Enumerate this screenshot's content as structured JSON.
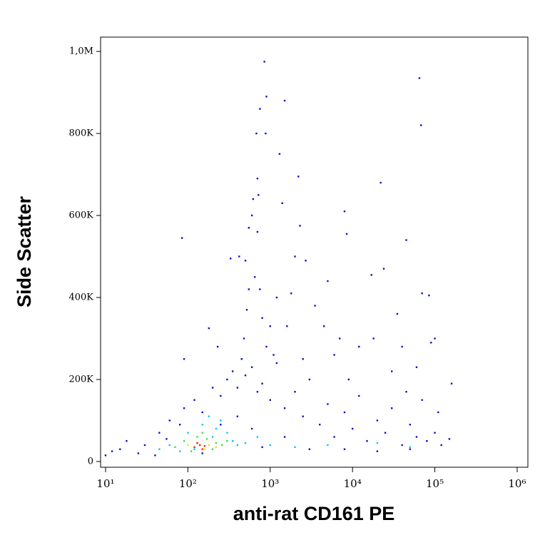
{
  "chart_data": {
    "type": "scatter",
    "x_label": "anti-rat CD161 PE",
    "y_label": "Side Scatter",
    "xscale": "log",
    "xlim": [
      8.7,
      1350000
    ],
    "ylim": [
      -14000,
      1035000
    ],
    "xticks": [
      {
        "value": 10,
        "label": "10¹"
      },
      {
        "value": 100,
        "label": "10²"
      },
      {
        "value": 1000,
        "label": "10³"
      },
      {
        "value": 10000,
        "label": "10⁴"
      },
      {
        "value": 100000,
        "label": "10⁵"
      },
      {
        "value": 1000000,
        "label": "10⁶"
      }
    ],
    "yticks": [
      0,
      {
        "value": 200000,
        "label": "200K"
      },
      {
        "value": 400000,
        "label": "400K"
      },
      {
        "value": 600000,
        "label": "600K"
      },
      {
        "value": 800000,
        "label": "800K"
      },
      {
        "value": 1000000,
        "label": "1,0M"
      }
    ],
    "series": [
      {
        "color": "#0a14c8",
        "x": [
          30,
          45,
          60,
          80,
          25,
          15,
          18,
          12,
          40,
          55,
          90,
          120,
          150,
          200,
          250,
          300,
          350,
          400,
          450,
          500,
          600,
          700,
          800,
          900,
          1000,
          1200,
          1500,
          2000,
          2500,
          3000,
          4000,
          5000,
          6000,
          8000,
          10000,
          12000,
          15000,
          20000,
          25000,
          30000,
          40000,
          50000,
          60000,
          80000,
          100000,
          120000,
          150000,
          160000,
          100000,
          70000,
          85000,
          65000,
          68000,
          45000,
          22000,
          8000,
          8500,
          17000,
          24000,
          5000,
          2200,
          2300,
          1400,
          1300,
          1500,
          900,
          850,
          750,
          880,
          680,
          700,
          720,
          600,
          550,
          500,
          420,
          330,
          650,
          750,
          800,
          1000,
          1200,
          1800,
          2000,
          2700,
          3500,
          4500,
          6000,
          7000,
          12000,
          18000,
          35000,
          40000,
          60000,
          90000,
          85,
          90,
          180,
          230,
          700,
          620,
          550,
          520,
          480,
          1100,
          1600,
          2500,
          9000,
          30000,
          45000,
          70000,
          110000,
          50000,
          3000,
          20000,
          800,
          150,
          10,
          8000,
          1500,
          400,
          250,
          600
        ],
        "values": [
          40000,
          70000,
          100000,
          90000,
          20000,
          30000,
          50000,
          25000,
          15000,
          55000,
          130000,
          150000,
          120000,
          180000,
          160000,
          200000,
          220000,
          180000,
          250000,
          210000,
          230000,
          170000,
          190000,
          280000,
          150000,
          240000,
          130000,
          170000,
          110000,
          200000,
          90000,
          140000,
          60000,
          120000,
          80000,
          160000,
          50000,
          100000,
          70000,
          130000,
          40000,
          90000,
          60000,
          50000,
          70000,
          40000,
          55000,
          190000,
          300000,
          410000,
          405000,
          935000,
          820000,
          540000,
          680000,
          610000,
          555000,
          455000,
          470000,
          440000,
          695000,
          575000,
          630000,
          750000,
          880000,
          890000,
          975000,
          860000,
          800000,
          800000,
          690000,
          650000,
          600000,
          570000,
          490000,
          500000,
          495000,
          450000,
          420000,
          350000,
          330000,
          400000,
          410000,
          500000,
          490000,
          380000,
          330000,
          260000,
          300000,
          280000,
          300000,
          360000,
          280000,
          230000,
          290000,
          545000,
          250000,
          325000,
          280000,
          560000,
          640000,
          420000,
          370000,
          300000,
          260000,
          330000,
          250000,
          200000,
          220000,
          170000,
          150000,
          120000,
          30000,
          30000,
          25000,
          35000,
          20000,
          15000,
          30000,
          60000,
          110000,
          90000,
          80000
        ]
      },
      {
        "color": "#00c8ff",
        "x": [
          60,
          100,
          150,
          200,
          250,
          300,
          350,
          400,
          120,
          80,
          500,
          1000,
          2000,
          5000,
          20000,
          50000,
          180,
          220,
          45,
          700
        ],
        "values": [
          40000,
          70000,
          90000,
          60000,
          100000,
          70000,
          50000,
          40000,
          30000,
          25000,
          45000,
          40000,
          35000,
          40000,
          45000,
          35000,
          110000,
          80000,
          30000,
          60000
        ]
      },
      {
        "color": "#40e040",
        "x": [
          70,
          90,
          130,
          170,
          220,
          260,
          110,
          150,
          300,
          200
        ],
        "values": [
          35000,
          50000,
          60000,
          55000,
          45000,
          40000,
          25000,
          70000,
          50000,
          30000
        ]
      },
      {
        "color": "#f0e000",
        "x": [
          100,
          130,
          180,
          160,
          120,
          220
        ],
        "values": [
          40000,
          45000,
          40000,
          30000,
          35000,
          35000
        ]
      },
      {
        "color": "#ff2000",
        "x": [
          120,
          140,
          160,
          150,
          130
        ],
        "values": [
          35000,
          40000,
          38000,
          30000,
          45000
        ]
      }
    ]
  }
}
